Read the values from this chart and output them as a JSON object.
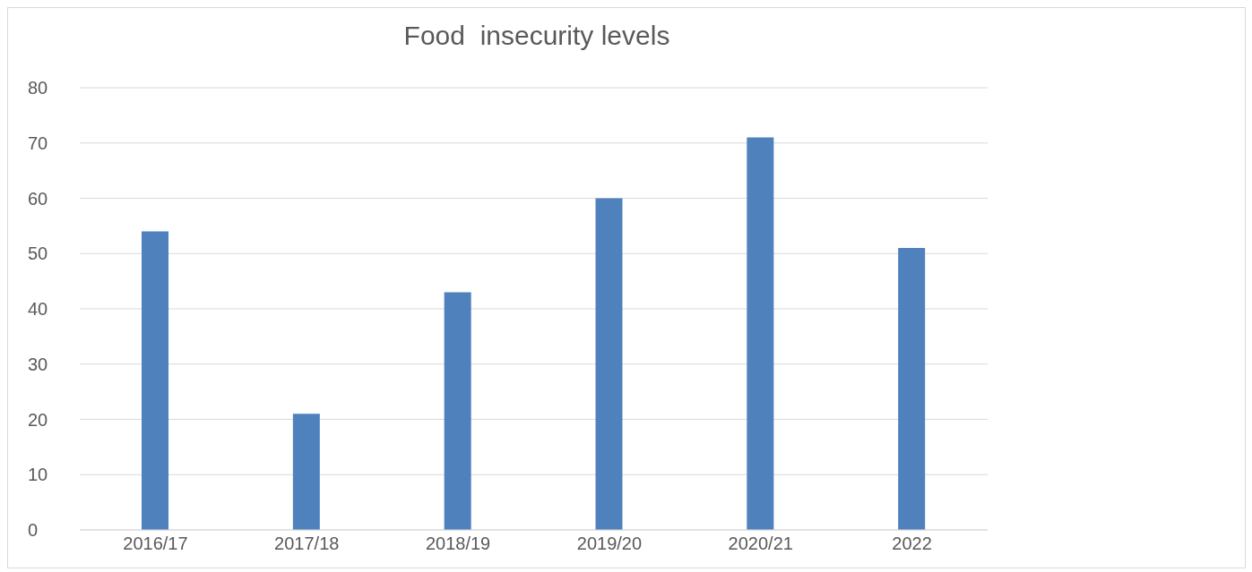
{
  "chart_data": {
    "type": "bar",
    "title": "Food  insecurity levels",
    "categories": [
      "2016/17",
      "2017/18",
      "2018/19",
      "2019/20",
      "2020/21",
      "2022"
    ],
    "values": [
      54,
      21,
      43,
      60,
      71,
      51
    ],
    "color": "#4f81bd",
    "ylim": [
      0,
      80
    ],
    "yticks": [
      0,
      10,
      20,
      30,
      40,
      50,
      60,
      70,
      80
    ],
    "grid": "y"
  }
}
